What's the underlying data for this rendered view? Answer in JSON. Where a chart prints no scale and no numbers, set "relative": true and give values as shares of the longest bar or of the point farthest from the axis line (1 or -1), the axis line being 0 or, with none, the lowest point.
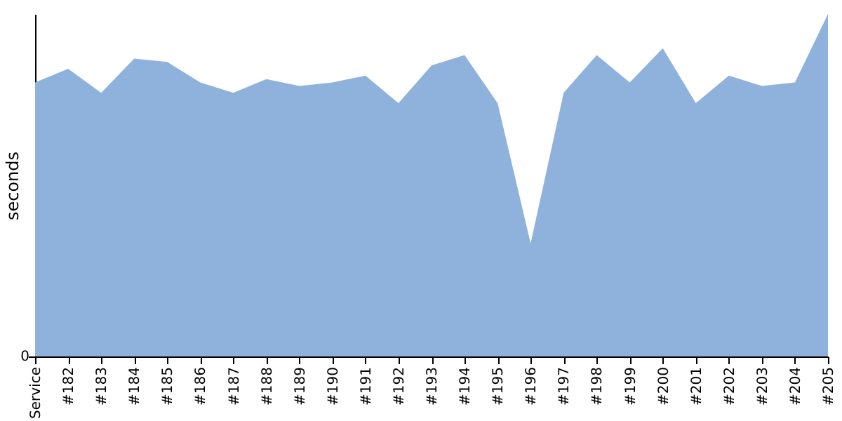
{
  "chart_data": {
    "type": "area",
    "relative": true,
    "ylabel": "seconds",
    "annotations": [
      "0"
    ],
    "categories": [
      "Service",
      "#182",
      "#183",
      "#184",
      "#185",
      "#186",
      "#187",
      "#188",
      "#189",
      "#190",
      "#191",
      "#192",
      "#193",
      "#194",
      "#195",
      "#196",
      "#197",
      "#198",
      "#199",
      "#200",
      "#201",
      "#202",
      "#203",
      "#204",
      "#205"
    ],
    "series": [
      {
        "color": "#8fb2dc",
        "values": [
          0.8,
          0.84,
          0.77,
          0.87,
          0.86,
          0.8,
          0.77,
          0.81,
          0.79,
          0.8,
          0.82,
          0.74,
          0.85,
          0.88,
          0.74,
          0.33,
          0.77,
          0.88,
          0.8,
          0.9,
          0.74,
          0.82,
          0.79,
          0.8,
          1.0
        ]
      }
    ]
  }
}
